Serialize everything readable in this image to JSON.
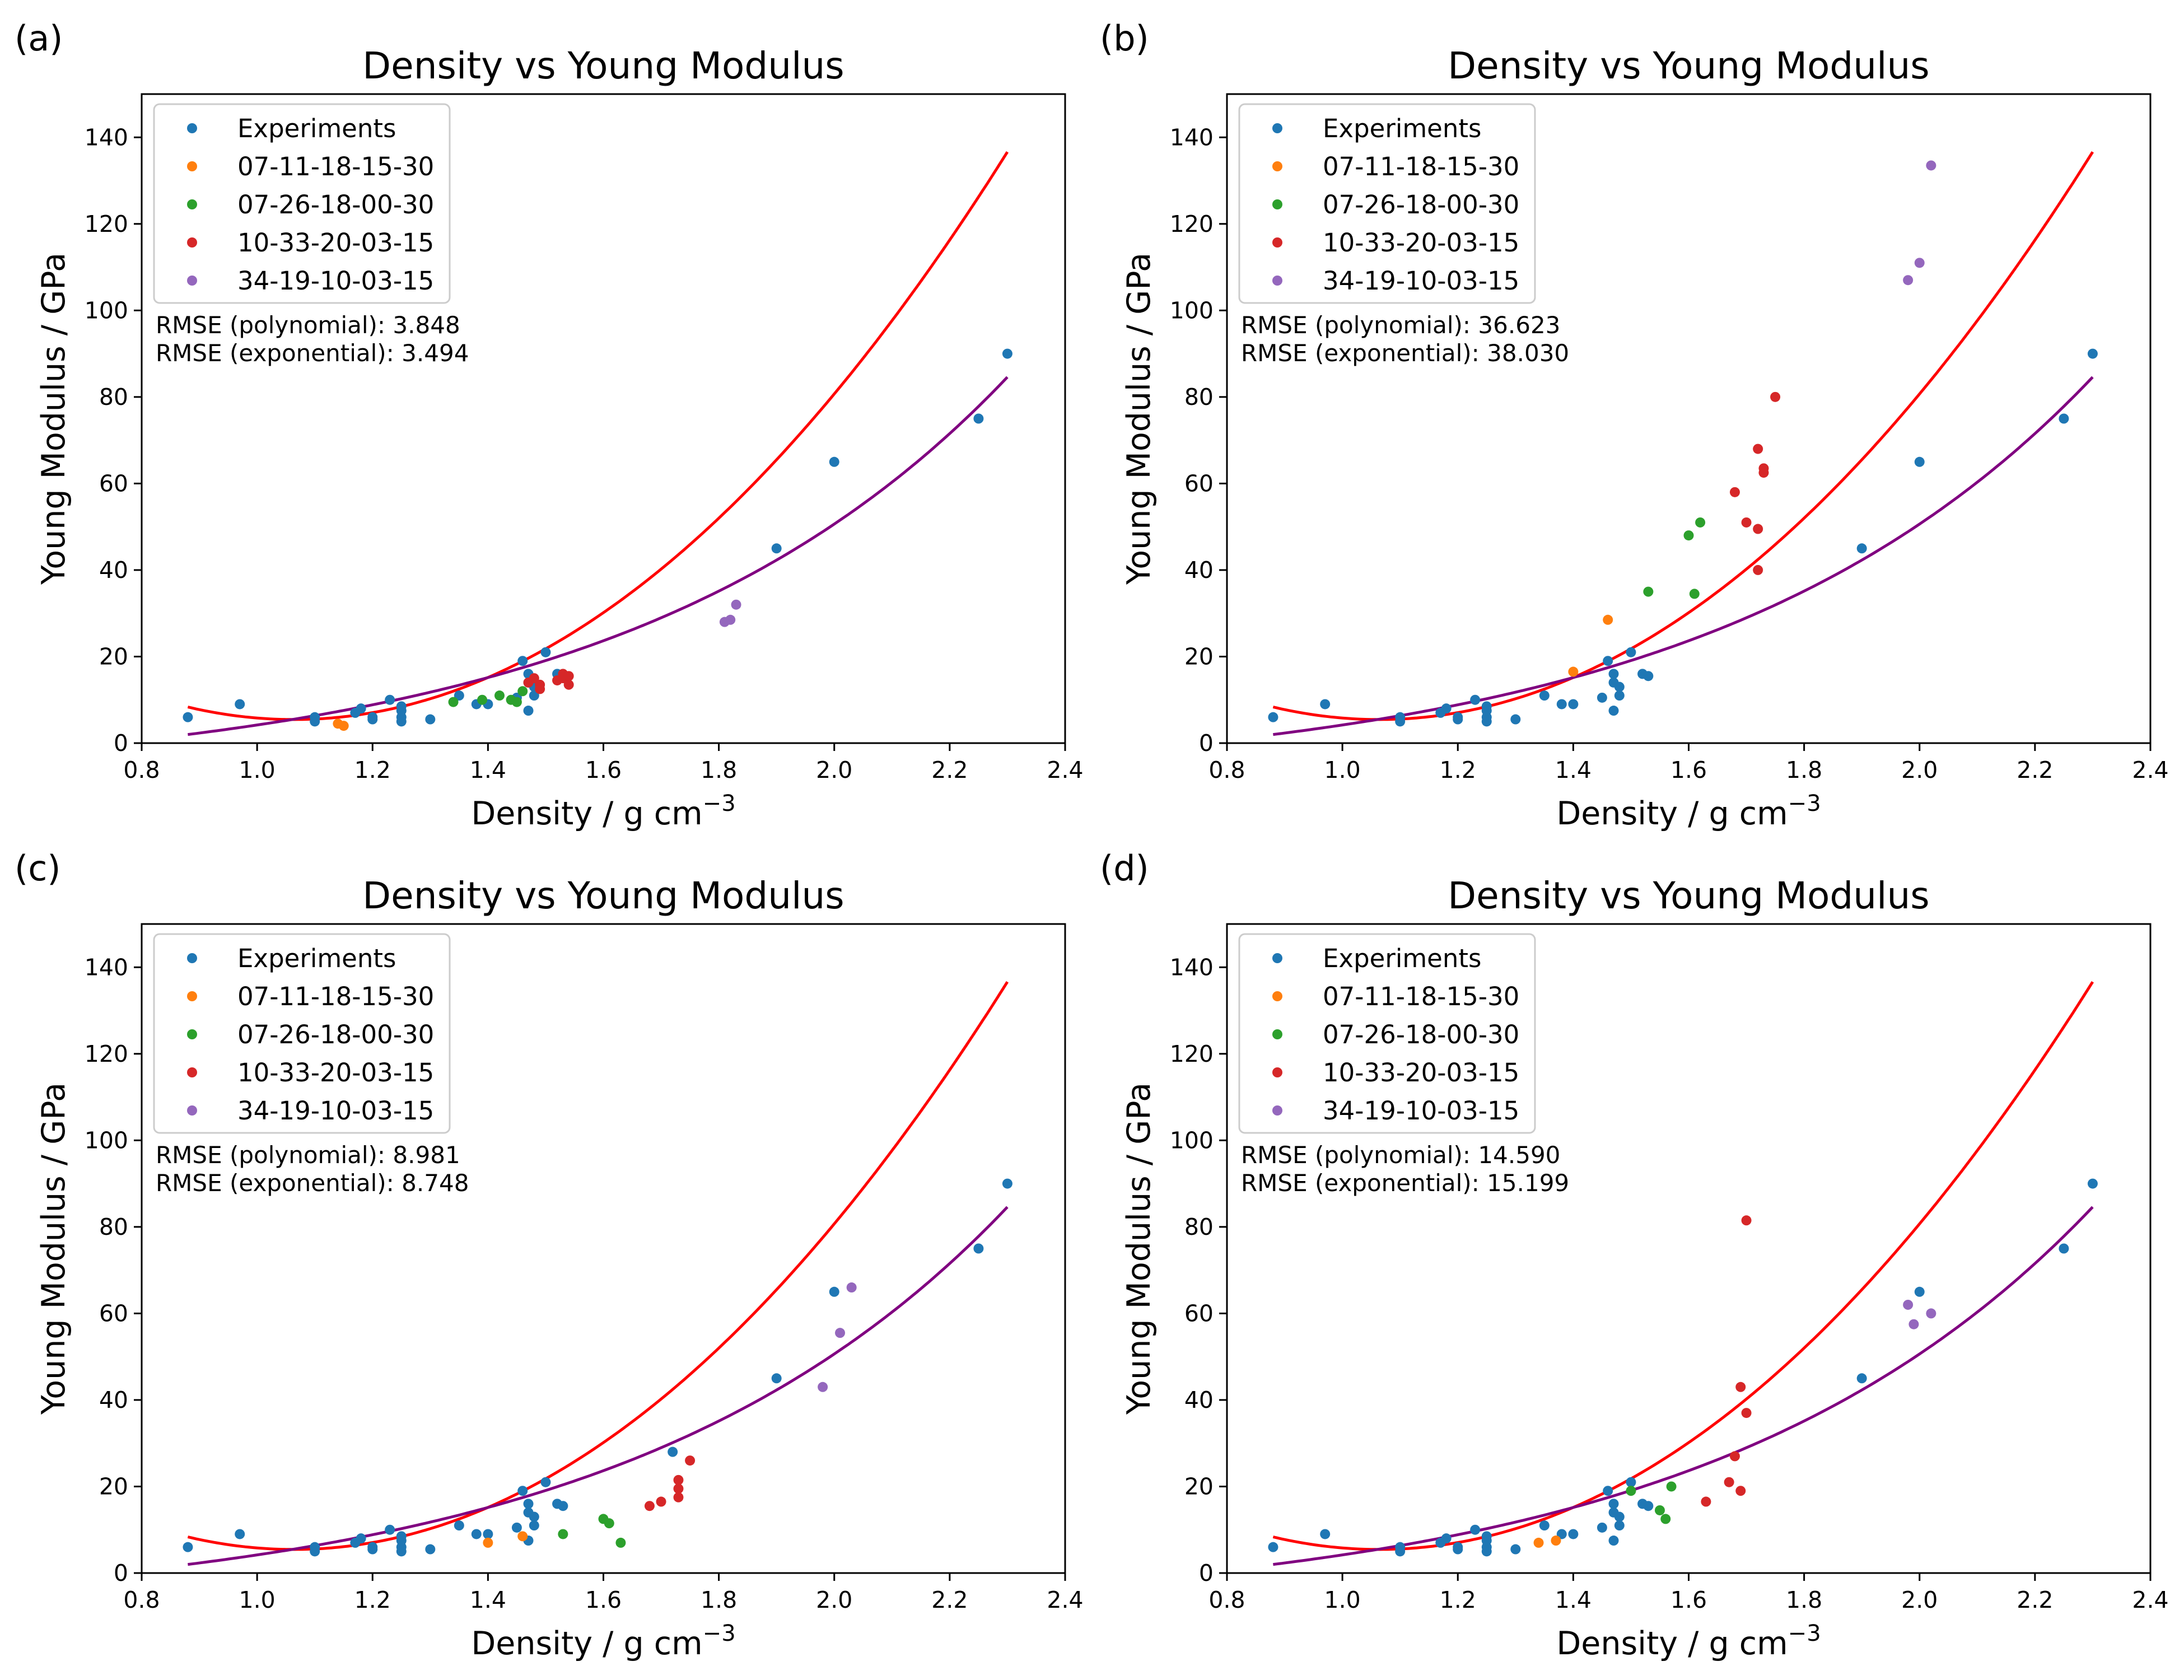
{
  "figure": {
    "colors": {
      "Experiments": "#1f77b4",
      "07-11-18-15-30": "#ff7f0e",
      "07-26-18-00-30": "#2ca02c",
      "10-33-20-03-15": "#d62728",
      "34-19-10-03-15": "#9467bd",
      "polynomial_fit": "#ff0000",
      "exponential_fit": "#800080"
    }
  },
  "chart_data": [
    {
      "panel": "(a)",
      "type": "scatter",
      "title": "Density vs Young Modulus",
      "xlabel": "Density / g cm",
      "xlabel_sup": "−3",
      "ylabel": "Young Modulus / GPa",
      "xlim": [
        0.8,
        2.4
      ],
      "ylim": [
        0,
        150
      ],
      "xticks": [
        "0.8",
        "1.0",
        "1.2",
        "1.4",
        "1.6",
        "1.8",
        "2.0",
        "2.2",
        "2.4"
      ],
      "yticks": [
        "0",
        "20",
        "40",
        "60",
        "80",
        "100",
        "120",
        "140"
      ],
      "legend": [
        "Experiments",
        "07-11-18-15-30",
        "07-26-18-00-30",
        "10-33-20-03-15",
        "34-19-10-03-15"
      ],
      "legend_position": "top-left",
      "annotations": [
        "RMSE (polynomial): 3.848",
        "RMSE (exponential): 3.494"
      ],
      "series": [
        {
          "name": "Experiments",
          "points": [
            [
              0.88,
              6
            ],
            [
              0.97,
              9
            ],
            [
              1.1,
              5
            ],
            [
              1.1,
              6
            ],
            [
              1.17,
              7
            ],
            [
              1.18,
              8
            ],
            [
              1.2,
              5.5
            ],
            [
              1.2,
              6
            ],
            [
              1.23,
              10
            ],
            [
              1.25,
              5
            ],
            [
              1.25,
              6
            ],
            [
              1.25,
              7.5
            ],
            [
              1.25,
              8.5
            ],
            [
              1.3,
              5.5
            ],
            [
              1.35,
              11
            ],
            [
              1.38,
              9
            ],
            [
              1.4,
              9
            ],
            [
              1.45,
              10.5
            ],
            [
              1.46,
              19
            ],
            [
              1.47,
              16
            ],
            [
              1.47,
              14
            ],
            [
              1.47,
              7.5
            ],
            [
              1.48,
              11
            ],
            [
              1.48,
              13
            ],
            [
              1.5,
              21
            ],
            [
              1.52,
              16
            ],
            [
              1.53,
              15.5
            ],
            [
              1.9,
              45
            ],
            [
              2.0,
              65
            ],
            [
              2.25,
              75
            ],
            [
              2.3,
              90
            ]
          ]
        },
        {
          "name": "07-11-18-15-30",
          "points": [
            [
              1.14,
              4.5
            ],
            [
              1.15,
              4
            ]
          ]
        },
        {
          "name": "07-26-18-00-30",
          "points": [
            [
              1.34,
              9.5
            ],
            [
              1.39,
              10
            ],
            [
              1.42,
              11
            ],
            [
              1.44,
              10
            ],
            [
              1.45,
              9.5
            ],
            [
              1.46,
              12
            ]
          ]
        },
        {
          "name": "10-33-20-03-15",
          "points": [
            [
              1.47,
              14
            ],
            [
              1.48,
              15
            ],
            [
              1.49,
              12.5
            ],
            [
              1.49,
              13.5
            ],
            [
              1.52,
              14.5
            ],
            [
              1.53,
              15
            ],
            [
              1.53,
              16
            ],
            [
              1.54,
              13.5
            ],
            [
              1.54,
              15.5
            ]
          ]
        },
        {
          "name": "34-19-10-03-15",
          "points": [
            [
              1.81,
              28
            ],
            [
              1.82,
              28.5
            ],
            [
              1.83,
              32
            ]
          ]
        }
      ]
    },
    {
      "panel": "(b)",
      "type": "scatter",
      "title": "Density vs Young Modulus",
      "xlabel": "Density / g cm",
      "xlabel_sup": "−3",
      "ylabel": "Young Modulus / GPa",
      "xlim": [
        0.8,
        2.4
      ],
      "ylim": [
        0,
        150
      ],
      "xticks": [
        "0.8",
        "1.0",
        "1.2",
        "1.4",
        "1.6",
        "1.8",
        "2.0",
        "2.2",
        "2.4"
      ],
      "yticks": [
        "0",
        "20",
        "40",
        "60",
        "80",
        "100",
        "120",
        "140"
      ],
      "legend": [
        "Experiments",
        "07-11-18-15-30",
        "07-26-18-00-30",
        "10-33-20-03-15",
        "34-19-10-03-15"
      ],
      "legend_position": "top-left",
      "annotations": [
        "RMSE (polynomial): 36.623",
        "RMSE (exponential): 38.030"
      ],
      "series": [
        {
          "name": "Experiments",
          "points": [
            [
              0.88,
              6
            ],
            [
              0.97,
              9
            ],
            [
              1.1,
              5
            ],
            [
              1.1,
              6
            ],
            [
              1.17,
              7
            ],
            [
              1.18,
              8
            ],
            [
              1.2,
              5.5
            ],
            [
              1.2,
              6
            ],
            [
              1.23,
              10
            ],
            [
              1.25,
              5
            ],
            [
              1.25,
              6
            ],
            [
              1.25,
              7.5
            ],
            [
              1.25,
              8.5
            ],
            [
              1.3,
              5.5
            ],
            [
              1.35,
              11
            ],
            [
              1.38,
              9
            ],
            [
              1.4,
              9
            ],
            [
              1.45,
              10.5
            ],
            [
              1.46,
              19
            ],
            [
              1.47,
              16
            ],
            [
              1.47,
              14
            ],
            [
              1.47,
              7.5
            ],
            [
              1.48,
              11
            ],
            [
              1.48,
              13
            ],
            [
              1.5,
              21
            ],
            [
              1.52,
              16
            ],
            [
              1.53,
              15.5
            ],
            [
              1.9,
              45
            ],
            [
              2.0,
              65
            ],
            [
              2.25,
              75
            ],
            [
              2.3,
              90
            ]
          ]
        },
        {
          "name": "07-11-18-15-30",
          "points": [
            [
              1.4,
              16.5
            ],
            [
              1.46,
              28.5
            ]
          ]
        },
        {
          "name": "07-26-18-00-30",
          "points": [
            [
              1.53,
              35
            ],
            [
              1.6,
              48
            ],
            [
              1.61,
              34.5
            ],
            [
              1.62,
              51
            ]
          ]
        },
        {
          "name": "10-33-20-03-15",
          "points": [
            [
              1.68,
              58
            ],
            [
              1.7,
              51
            ],
            [
              1.72,
              40
            ],
            [
              1.72,
              68
            ],
            [
              1.72,
              49.5
            ],
            [
              1.73,
              62.5
            ],
            [
              1.73,
              63.5
            ],
            [
              1.75,
              80
            ]
          ]
        },
        {
          "name": "34-19-10-03-15",
          "points": [
            [
              1.98,
              107
            ],
            [
              2.0,
              111
            ],
            [
              2.02,
              133.5
            ]
          ]
        }
      ]
    },
    {
      "panel": "(c)",
      "type": "scatter",
      "title": "Density vs Young Modulus",
      "xlabel": "Density / g cm",
      "xlabel_sup": "−3",
      "ylabel": "Young Modulus / GPa",
      "xlim": [
        0.8,
        2.4
      ],
      "ylim": [
        0,
        150
      ],
      "xticks": [
        "0.8",
        "1.0",
        "1.2",
        "1.4",
        "1.6",
        "1.8",
        "2.0",
        "2.2",
        "2.4"
      ],
      "yticks": [
        "0",
        "20",
        "40",
        "60",
        "80",
        "100",
        "120",
        "140"
      ],
      "legend": [
        "Experiments",
        "07-11-18-15-30",
        "07-26-18-00-30",
        "10-33-20-03-15",
        "34-19-10-03-15"
      ],
      "legend_position": "top-left",
      "annotations": [
        "RMSE (polynomial): 8.981",
        "RMSE (exponential): 8.748"
      ],
      "series": [
        {
          "name": "Experiments",
          "points": [
            [
              0.88,
              6
            ],
            [
              0.97,
              9
            ],
            [
              1.1,
              5
            ],
            [
              1.1,
              6
            ],
            [
              1.17,
              7
            ],
            [
              1.18,
              8
            ],
            [
              1.2,
              5.5
            ],
            [
              1.2,
              6
            ],
            [
              1.23,
              10
            ],
            [
              1.25,
              5
            ],
            [
              1.25,
              6
            ],
            [
              1.25,
              7.5
            ],
            [
              1.25,
              8.5
            ],
            [
              1.3,
              5.5
            ],
            [
              1.35,
              11
            ],
            [
              1.38,
              9
            ],
            [
              1.4,
              9
            ],
            [
              1.45,
              10.5
            ],
            [
              1.46,
              19
            ],
            [
              1.47,
              16
            ],
            [
              1.47,
              14
            ],
            [
              1.47,
              7.5
            ],
            [
              1.48,
              11
            ],
            [
              1.48,
              13
            ],
            [
              1.5,
              21
            ],
            [
              1.52,
              16
            ],
            [
              1.53,
              15.5
            ],
            [
              1.72,
              28
            ],
            [
              1.9,
              45
            ],
            [
              2.0,
              65
            ],
            [
              2.25,
              75
            ],
            [
              2.3,
              90
            ]
          ]
        },
        {
          "name": "07-11-18-15-30",
          "points": [
            [
              1.4,
              7
            ],
            [
              1.46,
              8.5
            ]
          ]
        },
        {
          "name": "07-26-18-00-30",
          "points": [
            [
              1.53,
              9
            ],
            [
              1.6,
              12.5
            ],
            [
              1.61,
              11.5
            ],
            [
              1.63,
              7
            ]
          ]
        },
        {
          "name": "10-33-20-03-15",
          "points": [
            [
              1.68,
              15.5
            ],
            [
              1.7,
              16.5
            ],
            [
              1.73,
              17.5
            ],
            [
              1.73,
              19.5
            ],
            [
              1.73,
              21.5
            ],
            [
              1.75,
              26
            ]
          ]
        },
        {
          "name": "34-19-10-03-15",
          "points": [
            [
              1.98,
              43
            ],
            [
              2.01,
              55.5
            ],
            [
              2.03,
              66
            ]
          ]
        }
      ]
    },
    {
      "panel": "(d)",
      "type": "scatter",
      "title": "Density vs Young Modulus",
      "xlabel": "Density / g cm",
      "xlabel_sup": "−3",
      "ylabel": "Young Modulus / GPa",
      "xlim": [
        0.8,
        2.4
      ],
      "ylim": [
        0,
        150
      ],
      "xticks": [
        "0.8",
        "1.0",
        "1.2",
        "1.4",
        "1.6",
        "1.8",
        "2.0",
        "2.2",
        "2.4"
      ],
      "yticks": [
        "0",
        "20",
        "40",
        "60",
        "80",
        "100",
        "120",
        "140"
      ],
      "legend": [
        "Experiments",
        "07-11-18-15-30",
        "07-26-18-00-30",
        "10-33-20-03-15",
        "34-19-10-03-15"
      ],
      "legend_position": "top-left",
      "annotations": [
        "RMSE (polynomial): 14.590",
        "RMSE (exponential): 15.199"
      ],
      "series": [
        {
          "name": "Experiments",
          "points": [
            [
              0.88,
              6
            ],
            [
              0.97,
              9
            ],
            [
              1.1,
              5
            ],
            [
              1.1,
              6
            ],
            [
              1.17,
              7
            ],
            [
              1.18,
              8
            ],
            [
              1.2,
              5.5
            ],
            [
              1.2,
              6
            ],
            [
              1.23,
              10
            ],
            [
              1.25,
              5
            ],
            [
              1.25,
              6
            ],
            [
              1.25,
              7.5
            ],
            [
              1.25,
              8.5
            ],
            [
              1.3,
              5.5
            ],
            [
              1.35,
              11
            ],
            [
              1.38,
              9
            ],
            [
              1.4,
              9
            ],
            [
              1.45,
              10.5
            ],
            [
              1.46,
              19
            ],
            [
              1.47,
              16
            ],
            [
              1.47,
              14
            ],
            [
              1.47,
              7.5
            ],
            [
              1.48,
              11
            ],
            [
              1.48,
              13
            ],
            [
              1.5,
              21
            ],
            [
              1.52,
              16
            ],
            [
              1.53,
              15.5
            ],
            [
              1.9,
              45
            ],
            [
              2.0,
              65
            ],
            [
              2.25,
              75
            ],
            [
              2.3,
              90
            ]
          ]
        },
        {
          "name": "07-11-18-15-30",
          "points": [
            [
              1.34,
              7
            ],
            [
              1.37,
              7.5
            ]
          ]
        },
        {
          "name": "07-26-18-00-30",
          "points": [
            [
              1.5,
              19
            ],
            [
              1.55,
              14.5
            ],
            [
              1.56,
              12.5
            ],
            [
              1.57,
              20
            ]
          ]
        },
        {
          "name": "10-33-20-03-15",
          "points": [
            [
              1.63,
              16.5
            ],
            [
              1.67,
              21
            ],
            [
              1.68,
              27
            ],
            [
              1.69,
              19
            ],
            [
              1.69,
              43
            ],
            [
              1.7,
              37
            ],
            [
              1.7,
              81.5
            ]
          ]
        },
        {
          "name": "34-19-10-03-15",
          "points": [
            [
              1.98,
              62
            ],
            [
              1.99,
              57.5
            ],
            [
              2.02,
              60
            ]
          ]
        }
      ]
    }
  ]
}
